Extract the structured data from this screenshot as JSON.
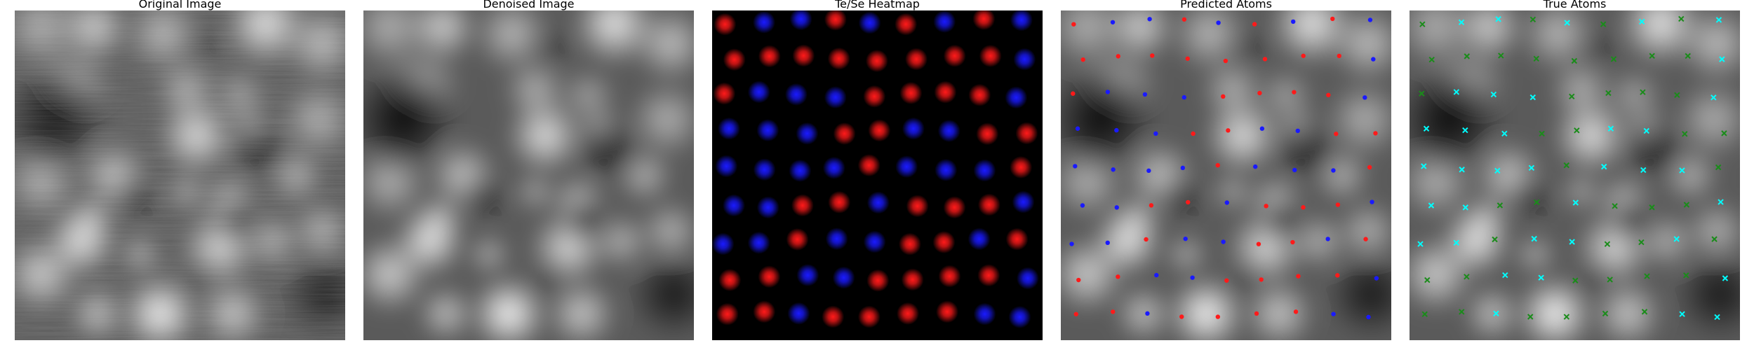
{
  "panels": [
    {
      "id": "original",
      "title": "Original Image",
      "kind": "grayscale-noisy"
    },
    {
      "id": "denoised",
      "title": "Denoised Image",
      "kind": "grayscale-smooth"
    },
    {
      "id": "heatmap",
      "title": "Te/Se Heatmap",
      "kind": "heatmap"
    },
    {
      "id": "predicted",
      "title": "Predicted Atoms",
      "kind": "markers-dot"
    },
    {
      "id": "true",
      "title": "True Atoms",
      "kind": "markers-x"
    }
  ],
  "colors": {
    "te": "#ff1a1a",
    "se": "#1a1aff",
    "true_a": "#00ffff",
    "true_b": "#1a8c1a",
    "heatmap_bg": "#000000"
  },
  "lattice": {
    "rows": 9,
    "cols": 9,
    "row_species": [
      "RBBRBRBRB",
      "RRRRRRRRB",
      "RBBBRRRRB",
      "BBBRRBBRR",
      "BBBBRBBBR",
      "BBRRBRRRB",
      "BBRBBRRBR",
      "RRBBRRRRB",
      "RRBRRRRBB"
    ]
  },
  "intensity_field": {
    "blobs": [
      [
        0.08,
        0.05,
        0.13,
        0.55
      ],
      [
        0.24,
        0.05,
        0.11,
        0.75
      ],
      [
        0.45,
        0.07,
        0.12,
        0.6
      ],
      [
        0.76,
        0.04,
        0.13,
        0.9
      ],
      [
        0.93,
        0.1,
        0.12,
        0.65
      ],
      [
        0.18,
        0.22,
        0.12,
        0.45
      ],
      [
        0.52,
        0.24,
        0.1,
        0.55
      ],
      [
        0.68,
        0.26,
        0.09,
        0.45
      ],
      [
        0.92,
        0.33,
        0.12,
        0.55
      ],
      [
        0.55,
        0.38,
        0.12,
        0.85
      ],
      [
        0.72,
        0.37,
        0.08,
        0.6
      ],
      [
        0.08,
        0.52,
        0.12,
        0.55
      ],
      [
        0.3,
        0.5,
        0.11,
        0.65
      ],
      [
        0.52,
        0.55,
        0.07,
        0.45
      ],
      [
        0.85,
        0.5,
        0.09,
        0.55
      ],
      [
        0.65,
        0.58,
        0.09,
        0.6
      ],
      [
        0.23,
        0.63,
        0.08,
        0.55
      ],
      [
        0.2,
        0.7,
        0.11,
        0.9
      ],
      [
        0.38,
        0.74,
        0.07,
        0.5
      ],
      [
        0.62,
        0.72,
        0.12,
        0.8
      ],
      [
        0.78,
        0.7,
        0.09,
        0.55
      ],
      [
        0.08,
        0.8,
        0.12,
        0.75
      ],
      [
        0.44,
        0.92,
        0.12,
        1.0
      ],
      [
        0.66,
        0.92,
        0.11,
        0.7
      ],
      [
        0.93,
        0.67,
        0.1,
        0.55
      ],
      [
        0.25,
        0.92,
        0.09,
        0.65
      ]
    ],
    "dark_spots": [
      [
        0.12,
        0.33,
        0.17,
        0.9
      ],
      [
        0.58,
        0.11,
        0.08,
        0.35
      ],
      [
        0.74,
        0.42,
        0.11,
        0.7
      ],
      [
        0.67,
        0.63,
        0.08,
        0.5
      ],
      [
        0.94,
        0.86,
        0.14,
        0.75
      ],
      [
        0.37,
        0.57,
        0.08,
        0.5
      ],
      [
        0.55,
        0.82,
        0.07,
        0.35
      ]
    ]
  }
}
